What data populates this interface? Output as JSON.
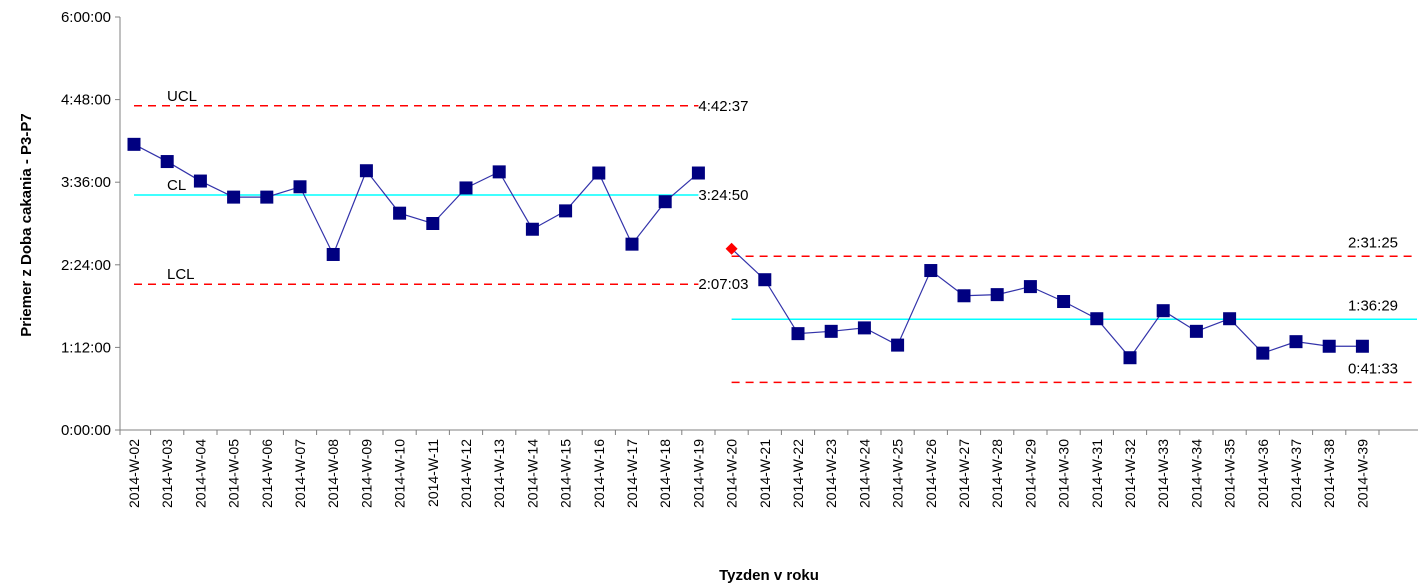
{
  "chart_data": {
    "type": "line",
    "title": "",
    "xlabel": "Tyzden v roku",
    "ylabel": "Priemer z Doba cakania - P3-P7",
    "y_unit": "h:mm:ss",
    "ylim": [
      "0:00:00",
      "6:00:00"
    ],
    "y_ticks": [
      "0:00:00",
      "1:12:00",
      "2:24:00",
      "3:36:00",
      "4:48:00",
      "6:00:00"
    ],
    "grid": false,
    "legend": "none",
    "categories": [
      "2014-W-02",
      "2014-W-03",
      "2014-W-04",
      "2014-W-05",
      "2014-W-06",
      "2014-W-07",
      "2014-W-08",
      "2014-W-09",
      "2014-W-10",
      "2014-W-11",
      "2014-W-12",
      "2014-W-13",
      "2014-W-14",
      "2014-W-15",
      "2014-W-16",
      "2014-W-17",
      "2014-W-18",
      "2014-W-19",
      "2014-W-20",
      "2014-W-21",
      "2014-W-22",
      "2014-W-23",
      "2014-W-24",
      "2014-W-25",
      "2014-W-26",
      "2014-W-27",
      "2014-W-28",
      "2014-W-29",
      "2014-W-30",
      "2014-W-31",
      "2014-W-32",
      "2014-W-33",
      "2014-W-34",
      "2014-W-35",
      "2014-W-36",
      "2014-W-37",
      "2014-W-38",
      "2014-W-39"
    ],
    "phases": [
      {
        "categories": [
          "2014-W-02",
          "2014-W-03",
          "2014-W-04",
          "2014-W-05",
          "2014-W-06",
          "2014-W-07",
          "2014-W-08",
          "2014-W-09",
          "2014-W-10",
          "2014-W-11",
          "2014-W-12",
          "2014-W-13",
          "2014-W-14",
          "2014-W-15",
          "2014-W-16",
          "2014-W-17",
          "2014-W-18",
          "2014-W-19"
        ],
        "values": [
          "4:09:00",
          "3:54:00",
          "3:37:00",
          "3:23:00",
          "3:23:00",
          "3:32:00",
          "2:33:00",
          "3:46:00",
          "3:09:00",
          "3:00:00",
          "3:31:00",
          "3:45:00",
          "2:55:00",
          "3:11:00",
          "3:44:00",
          "2:42:00",
          "3:19:00",
          "3:44:00"
        ],
        "control_limits": {
          "UCL": "4:42:37",
          "CL": "3:24:50",
          "LCL": "2:07:03"
        },
        "limit_labels": {
          "UCL": "UCL",
          "CL": "CL",
          "LCL": "LCL"
        }
      },
      {
        "categories": [
          "2014-W-20",
          "2014-W-21",
          "2014-W-22",
          "2014-W-23",
          "2014-W-24",
          "2014-W-25",
          "2014-W-26",
          "2014-W-27",
          "2014-W-28",
          "2014-W-29",
          "2014-W-30",
          "2014-W-31",
          "2014-W-32",
          "2014-W-33",
          "2014-W-34",
          "2014-W-35",
          "2014-W-36",
          "2014-W-37",
          "2014-W-38",
          "2014-W-39"
        ],
        "values": [
          "2:38:00",
          "2:11:00",
          "1:24:00",
          "1:26:00",
          "1:29:00",
          "1:14:00",
          "2:19:00",
          "1:57:00",
          "1:58:00",
          "2:05:00",
          "1:52:00",
          "1:37:00",
          "1:03:00",
          "1:44:00",
          "1:26:00",
          "1:37:00",
          "1:07:00",
          "1:17:00",
          "1:13:00",
          "1:13:00"
        ],
        "control_limits": {
          "UCL": "2:31:25",
          "CL": "1:36:29",
          "LCL": "0:41:33"
        },
        "out_of_control": [
          "2014-W-20"
        ]
      }
    ],
    "colors": {
      "series": "#000080",
      "line": "#3333aa",
      "control_limit": "#ff0000",
      "center_line": "#00ffff",
      "out_of_control": "#ff0000",
      "axis": "#808080"
    }
  }
}
